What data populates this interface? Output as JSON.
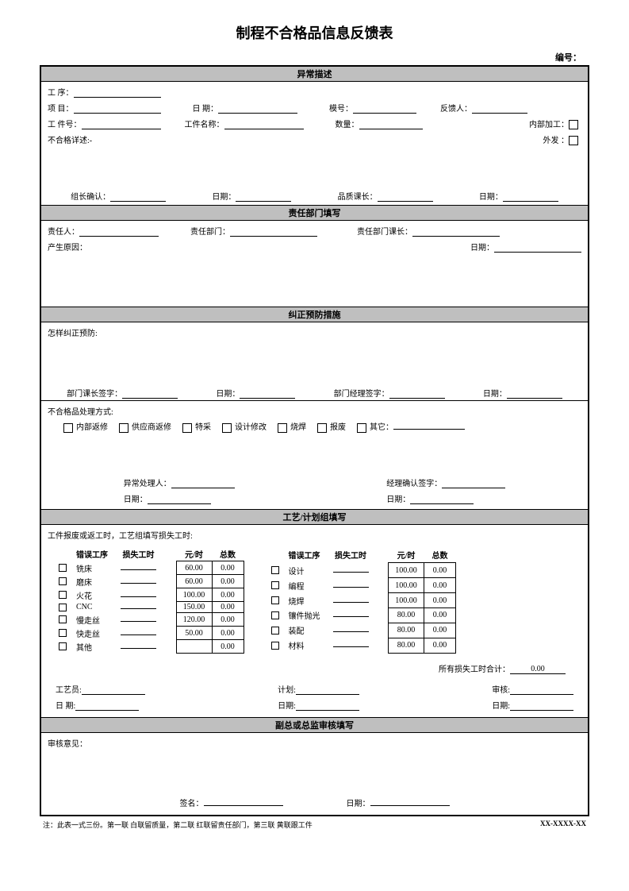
{
  "title": "制程不合格品信息反馈表",
  "serial_label": "编号：",
  "sections": {
    "s1": {
      "header": "异常描述",
      "labels": {
        "process": "工 序：",
        "project": "项 目：",
        "date": "日 期：",
        "mold": "模号：",
        "feedback": "反馈人：",
        "partno": "工 件号：",
        "partname": "工件名称：",
        "qty": "数量：",
        "internal": "内部加工：",
        "outsource": "外发 ：",
        "desc": "不合格详述:-",
        "leader_confirm": "组长确认：",
        "leader_date": "日期：",
        "quality": "品质课长：",
        "quality_date": "日期："
      }
    },
    "s2": {
      "header": "责任部门填写",
      "labels": {
        "resp_person": "责任人：",
        "resp_dept": "责任部门：",
        "resp_lead": "责任部门课长：",
        "cause": "产生原因：",
        "date": "日期："
      }
    },
    "s3": {
      "header": "纠正预防措施",
      "labels": {
        "how": "怎样纠正预防:",
        "dept_sign": "部门课长签字：",
        "dept_date": "日期：",
        "mgr_sign": "部门经理签字：",
        "mgr_date": "日期：",
        "nc_method": "不合格品处理方式:",
        "opts": [
          "内部返修",
          "供应商返修",
          "特采",
          "设计修改",
          "烧焊",
          "报废",
          "其它："
        ],
        "handler": "异常处理人：",
        "handler_date": "日期：",
        "mgr_confirm": "经理确认签字：",
        "mgr_confirm_date": "日期："
      }
    },
    "s4": {
      "header": "工艺/计划组填写",
      "note": "工件报废或返工时，工艺组填写损失工时:",
      "col_hdrs": {
        "proc": "错误工序",
        "loss": "损失工时",
        "rate": "元/时",
        "total": "总数"
      },
      "left_rows": [
        {
          "name": "铣床",
          "rate": "60.00",
          "total": "0.00"
        },
        {
          "name": "磨床",
          "rate": "60.00",
          "total": "0.00"
        },
        {
          "name": "火花",
          "rate": "100.00",
          "total": "0.00"
        },
        {
          "name": "CNC",
          "rate": "150.00",
          "total": "0.00"
        },
        {
          "name": "慢走丝",
          "rate": "120.00",
          "total": "0.00"
        },
        {
          "name": "快走丝",
          "rate": "50.00",
          "total": "0.00"
        },
        {
          "name": "其他",
          "rate": "",
          "total": "0.00"
        }
      ],
      "right_rows": [
        {
          "name": "设计",
          "rate": "100.00",
          "total": "0.00"
        },
        {
          "name": "编程",
          "rate": "100.00",
          "total": "0.00"
        },
        {
          "name": "烧焊",
          "rate": "100.00",
          "total": "0.00"
        },
        {
          "name": "镶件抛光",
          "rate": "80.00",
          "total": "0.00"
        },
        {
          "name": "装配",
          "rate": "80.00",
          "total": "0.00"
        },
        {
          "name": "材料",
          "rate": "80.00",
          "total": "0.00"
        }
      ],
      "total_label": "所有损失工时合计：",
      "total_value": "0.00",
      "tech": "工艺员:",
      "plan": "计划:",
      "review": "审核:",
      "date": "日 期:",
      "date2": "日期:",
      "date3": "日期:"
    },
    "s5": {
      "header": "副总或总监审核填写",
      "opinion": "审核意见：",
      "sign": "签名：",
      "date": "日期："
    }
  },
  "footer": {
    "note": "注：此表一式三份。第一联 白联留质量，第二联 红联留责任部门，第三联 黄联跟工件",
    "code": "XX-XXXX-XX"
  },
  "colors": {
    "header_bg": "#bfbfbf",
    "border": "#000000",
    "bg": "#ffffff"
  }
}
